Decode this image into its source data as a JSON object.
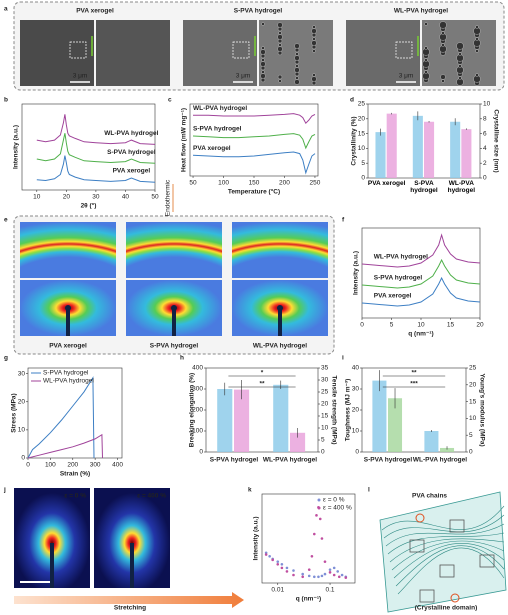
{
  "figure": {
    "panel_labels": [
      "a",
      "b",
      "c",
      "d",
      "e",
      "f",
      "g",
      "h",
      "i",
      "j",
      "k",
      "l"
    ],
    "a": {
      "titles": [
        "PVA xerogel",
        "S-PVA hydrogel",
        "WL-PVA hydrogel"
      ],
      "scale_bars": [
        "3 μm",
        "3 μm",
        "3 μm"
      ]
    },
    "e": {
      "captions": [
        "PVA xerogel",
        "S-PVA hydrogel",
        "WL-PVA hydrogel"
      ]
    },
    "j": {
      "labels": [
        "ε = 0 %",
        "ε = 400 %"
      ],
      "arrow": "Stretching"
    },
    "l": {
      "labels": [
        "PVA chains",
        "(Crystalline domain)"
      ]
    }
  },
  "chart_data": [
    {
      "type": "line",
      "xlabel": "2θ (°)",
      "ylabel": "Intensity (a.u.)",
      "x": [
        10,
        13,
        16,
        18,
        19,
        19.5,
        20,
        20.5,
        21,
        23,
        26,
        30,
        35,
        40,
        42,
        45,
        50
      ],
      "xlim": [
        5,
        50
      ],
      "xticks": [
        10,
        20,
        30,
        40,
        50
      ],
      "ylim": [
        0,
        10
      ],
      "series": [
        {
          "name": "WL-PVA hydrogel",
          "color": "#a0439a",
          "values": [
            5.8,
            5.6,
            5.8,
            6.4,
            7.8,
            8.8,
            7.6,
            6.6,
            6.3,
            6.0,
            5.6,
            5.5,
            5.4,
            5.5,
            5.8,
            5.4,
            5.3
          ]
        },
        {
          "name": "S-PVA hydrogel",
          "color": "#4fb04a",
          "values": [
            3.6,
            3.4,
            3.6,
            4.2,
            5.8,
            6.6,
            5.5,
            4.5,
            4.1,
            3.8,
            3.4,
            3.3,
            3.2,
            3.3,
            3.6,
            3.2,
            3.1
          ]
        },
        {
          "name": "PVA xerogel",
          "color": "#3d7fc4",
          "values": [
            1.2,
            1.1,
            1.3,
            1.8,
            3.0,
            4.0,
            3.2,
            2.2,
            1.8,
            1.5,
            1.2,
            1.1,
            1.0,
            1.1,
            1.4,
            1.0,
            0.9
          ]
        }
      ]
    },
    {
      "type": "line",
      "xlabel": "Temperature (°C)",
      "ylabel": "Heat flow (mW mg⁻¹)",
      "annotations": [
        "Endothermic"
      ],
      "x": [
        50,
        75,
        100,
        125,
        150,
        175,
        200,
        215,
        225,
        230,
        235,
        240,
        245,
        250
      ],
      "xlim": [
        45,
        255
      ],
      "xticks": [
        50,
        100,
        150,
        200,
        250
      ],
      "ylim": [
        0,
        9
      ],
      "series": [
        {
          "name": "WL-PVA hydrogel",
          "color": "#a0439a",
          "values": [
            7.6,
            7.6,
            7.5,
            7.5,
            7.5,
            7.6,
            7.7,
            7.8,
            7.6,
            7.3,
            6.6,
            7.0,
            7.5,
            7.7
          ]
        },
        {
          "name": "S-PVA hydrogel",
          "color": "#4fb04a",
          "values": [
            5.0,
            4.9,
            4.8,
            4.8,
            4.9,
            5.0,
            5.2,
            5.3,
            5.1,
            4.6,
            3.5,
            4.3,
            5.0,
            5.2
          ]
        },
        {
          "name": "PVA xerogel",
          "color": "#3d7fc4",
          "values": [
            2.6,
            2.5,
            2.4,
            2.4,
            2.5,
            2.7,
            2.9,
            3.0,
            2.8,
            2.0,
            0.4,
            1.5,
            2.5,
            2.8
          ]
        }
      ]
    },
    {
      "type": "bar",
      "ylabel": "Crystallinity (%)",
      "y2label": "Crystalline size (nm)",
      "categories": [
        "PVA xerogel",
        "S-PVA hydrogel",
        "WL-PVA hydrogel"
      ],
      "ylim": [
        0,
        25
      ],
      "yticks": [
        0,
        5,
        10,
        15,
        20,
        25
      ],
      "y2lim": [
        0,
        10
      ],
      "y2ticks": [
        0,
        2,
        4,
        6,
        8,
        10
      ],
      "series": [
        {
          "color": "#8ecbea",
          "values": [
            15.5,
            21,
            19
          ],
          "errors": [
            1.2,
            1.5,
            1.2
          ]
        },
        {
          "color": "#e9a3dc",
          "axis": "y2",
          "values": [
            8.7,
            7.6,
            6.6
          ],
          "errors": [
            0.1,
            0.1,
            0.1
          ]
        }
      ]
    },
    {
      "type": "line",
      "xlabel": "q (nm⁻¹)",
      "ylabel": "Intensity (a.u.)",
      "x": [
        0,
        2,
        4,
        6,
        8,
        10,
        12,
        13,
        13.5,
        14,
        15,
        16,
        18,
        20
      ],
      "xlim": [
        0,
        20
      ],
      "xticks": [
        0,
        5,
        10,
        15,
        20
      ],
      "ylim": [
        0,
        9
      ],
      "series": [
        {
          "name": "WL-PVA hydrogel",
          "color": "#a0439a",
          "values": [
            5.4,
            5.3,
            5.2,
            5.1,
            5.2,
            5.5,
            6.3,
            7.3,
            8.3,
            7.3,
            6.4,
            5.9,
            5.6,
            5.5
          ]
        },
        {
          "name": "S-PVA hydrogel",
          "color": "#4fb04a",
          "values": [
            3.3,
            3.2,
            3.1,
            3.0,
            3.1,
            3.4,
            4.2,
            5.2,
            5.8,
            5.2,
            4.3,
            3.8,
            3.5,
            3.4
          ]
        },
        {
          "name": "PVA xerogel",
          "color": "#3d7fc4",
          "values": [
            1.5,
            1.4,
            1.3,
            1.2,
            1.3,
            1.6,
            2.4,
            3.4,
            4.0,
            3.4,
            2.5,
            2.0,
            1.7,
            1.6
          ]
        }
      ]
    },
    {
      "type": "line",
      "xlabel": "Strain (%)",
      "ylabel": "Stress (MPa)",
      "xlim": [
        0,
        420
      ],
      "xticks": [
        0,
        100,
        200,
        300,
        400
      ],
      "ylim": [
        0,
        32
      ],
      "yticks": [
        0,
        10,
        20,
        30
      ],
      "series": [
        {
          "name": "S-PVA hydrogel",
          "color": "#3d7fc4",
          "x": [
            0,
            20,
            50,
            100,
            150,
            200,
            250,
            290,
            295
          ],
          "values": [
            0,
            3,
            5,
            9,
            13.5,
            18.5,
            23.5,
            28.5,
            0
          ]
        },
        {
          "name": "WL-PVA hydrogel",
          "color": "#a0439a",
          "x": [
            0,
            50,
            100,
            150,
            200,
            250,
            300,
            330,
            333
          ],
          "values": [
            0,
            1,
            2,
            3,
            4,
            5.3,
            6.8,
            8.3,
            0
          ]
        }
      ]
    },
    {
      "type": "bar",
      "ylabel": "Breaking elongation (%)",
      "y2label": "Tensile strength (MPa)",
      "annotations": [
        "*",
        "**"
      ],
      "categories": [
        "S-PVA hydrogel",
        "WL-PVA hydrogel"
      ],
      "ylim": [
        0,
        400
      ],
      "yticks": [
        0,
        100,
        200,
        300,
        400
      ],
      "y2lim": [
        0,
        35
      ],
      "y2ticks": [
        0,
        5,
        10,
        15,
        20,
        25,
        30,
        35
      ],
      "series": [
        {
          "color": "#8ecbea",
          "values": [
            300,
            320
          ],
          "errors": [
            30,
            20
          ]
        },
        {
          "color": "#e9a3dc",
          "axis": "y2",
          "values": [
            26,
            8
          ],
          "errors": [
            4,
            2
          ]
        }
      ]
    },
    {
      "type": "bar",
      "ylabel": "Toughness (MJ m⁻³)",
      "y2label": "Young's modulus (MPa)",
      "annotations": [
        "**",
        "***"
      ],
      "categories": [
        "S-PVA hydrogel",
        "WL-PVA hydrogel"
      ],
      "ylim": [
        0,
        40
      ],
      "yticks": [
        0,
        10,
        20,
        30,
        40
      ],
      "y2lim": [
        0,
        25
      ],
      "y2ticks": [
        0,
        5,
        10,
        15,
        20,
        25
      ],
      "series": [
        {
          "color": "#8ecbea",
          "values": [
            34,
            10
          ],
          "errors": [
            5,
            0.5
          ]
        },
        {
          "color": "#a8d8a0",
          "axis": "y2",
          "values": [
            16,
            1.2
          ],
          "errors": [
            3,
            0.5
          ]
        }
      ]
    },
    {
      "type": "scatter",
      "xlabel": "q (nm⁻¹)",
      "ylabel": "Intensity (a.u.)",
      "xscale": "log",
      "xlim": [
        0.005,
        0.3
      ],
      "xticks": [
        0.01,
        0.1
      ],
      "ylim": [
        0,
        10
      ],
      "series": [
        {
          "name": "ε = 0 %",
          "color": "#7f8fd6",
          "x": [
            0.006,
            0.007,
            0.008,
            0.01,
            0.012,
            0.015,
            0.02,
            0.03,
            0.04,
            0.05,
            0.06,
            0.07,
            0.08,
            0.1,
            0.12,
            0.14,
            0.17,
            0.2
          ],
          "values": [
            3.4,
            3.0,
            2.7,
            2.4,
            2.1,
            1.7,
            1.4,
            1.0,
            0.8,
            0.7,
            0.7,
            0.8,
            1.0,
            1.5,
            1.7,
            1.3,
            0.9,
            0.7
          ]
        },
        {
          "name": "ε = 400 %",
          "color": "#c04fa0",
          "x": [
            0.006,
            0.008,
            0.01,
            0.012,
            0.015,
            0.02,
            0.03,
            0.04,
            0.045,
            0.05,
            0.055,
            0.06,
            0.065,
            0.07,
            0.08,
            0.1,
            0.12,
            0.15,
            0.2
          ],
          "values": [
            3.2,
            2.6,
            2.1,
            1.7,
            1.3,
            0.9,
            0.7,
            1.5,
            3.0,
            5.5,
            7.6,
            8.5,
            7.2,
            5.0,
            2.4,
            1.2,
            0.9,
            0.7,
            0.6
          ]
        }
      ]
    }
  ]
}
